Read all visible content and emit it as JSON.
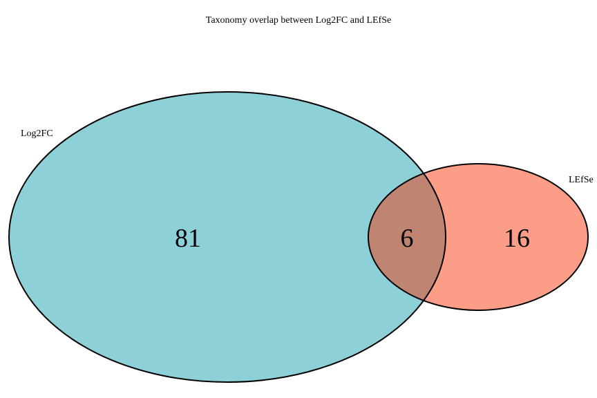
{
  "title": "Taxonomy overlap between Log2FC and LEfSe",
  "sets": [
    {
      "name": "Log2FC",
      "only_count": "81",
      "color": "#8dd0d7"
    },
    {
      "name": "LEfSe",
      "only_count": "16",
      "color": "#fc9d88"
    }
  ],
  "intersection": {
    "count": "6",
    "color": "#c08473"
  },
  "outline_color": "#000000"
}
